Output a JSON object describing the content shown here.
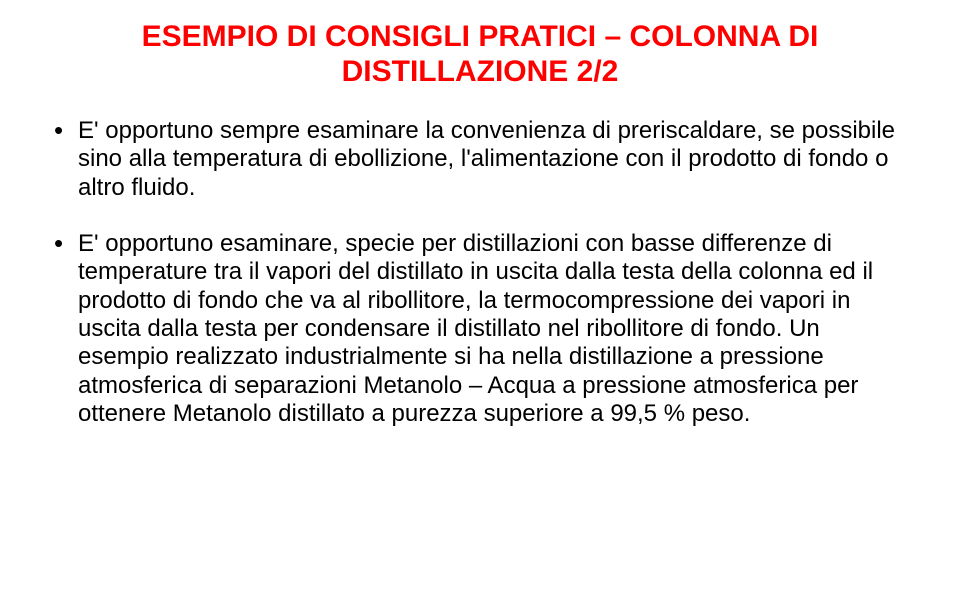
{
  "doc": {
    "background_color": "#ffffff",
    "font_family": "Arial",
    "title": {
      "line1": "ESEMPIO DI CONSIGLI PRATICI – COLONNA DI",
      "line2": "DISTILLAZIONE 2/2",
      "color": "#ff0000",
      "font_size_pt": 30,
      "font_weight": "bold",
      "align": "center"
    },
    "body": {
      "color": "#000000",
      "font_size_pt": 24,
      "line_height": 1.18,
      "bullet_char": "•",
      "bullets": [
        "E' opportuno sempre esaminare la convenienza di preriscaldare, se possibile sino alla temperatura di ebollizione, l'alimentazione con il prodotto di fondo o altro fluido.",
        "E' opportuno esaminare, specie per distillazioni con basse differenze di temperature tra il vapori del distillato in uscita dalla testa della colonna ed il prodotto di fondo che va al ribollitore, la termocompressione dei vapori in uscita dalla testa per condensare il distillato nel ribollitore di fondo. Un esempio realizzato industrialmente si ha nella distillazione a pressione atmosferica di separazioni Metanolo – Acqua a pressione atmosferica per ottenere Metanolo distillato a purezza superiore a 99,5 % peso."
      ]
    }
  }
}
